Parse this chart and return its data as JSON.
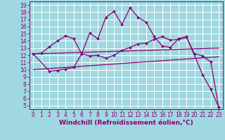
{
  "xlabel": "Windchill (Refroidissement éolien,°C)",
  "bg_color": "#9fd8e0",
  "line_color": "#880077",
  "grid_color": "#ffffff",
  "xlim": [
    -0.5,
    23.5
  ],
  "ylim": [
    4.5,
    19.5
  ],
  "xticks": [
    0,
    1,
    2,
    3,
    4,
    5,
    6,
    7,
    8,
    9,
    10,
    11,
    12,
    13,
    14,
    15,
    16,
    17,
    18,
    19,
    20,
    21,
    22,
    23
  ],
  "yticks": [
    5,
    6,
    7,
    8,
    9,
    10,
    11,
    12,
    13,
    14,
    15,
    16,
    17,
    18,
    19
  ],
  "line1_x": [
    0,
    1,
    2,
    3,
    4,
    5,
    6,
    7,
    8,
    9,
    10,
    11,
    12,
    13,
    14,
    15,
    16,
    17,
    18,
    19,
    20,
    21,
    22,
    23
  ],
  "line1_y": [
    12.2,
    12.3,
    13.2,
    14.0,
    14.7,
    14.3,
    12.2,
    11.9,
    12.0,
    11.6,
    12.0,
    12.7,
    13.1,
    13.6,
    13.7,
    14.2,
    14.6,
    14.1,
    14.2,
    14.5,
    12.2,
    11.9,
    11.1,
    4.8
  ],
  "line2_x": [
    0,
    2,
    3,
    4,
    5,
    6,
    7,
    8,
    9,
    10,
    11,
    12,
    13,
    14,
    15,
    16,
    17,
    18,
    19,
    21,
    22,
    23
  ],
  "line2_y": [
    12.2,
    9.8,
    9.9,
    10.1,
    10.3,
    12.2,
    15.1,
    14.3,
    17.3,
    18.1,
    16.3,
    18.6,
    17.3,
    16.6,
    14.6,
    13.3,
    13.1,
    14.3,
    14.6,
    9.3,
    7.3,
    4.8
  ],
  "line3_x": [
    0,
    23
  ],
  "line3_y": [
    12.2,
    13.0
  ],
  "line4_x": [
    0,
    23
  ],
  "line4_y": [
    10.0,
    11.8
  ],
  "xlabel_fontsize": 6.5,
  "tick_fontsize": 5.5,
  "marker": "D",
  "markersize": 2.0,
  "linewidth": 0.9
}
